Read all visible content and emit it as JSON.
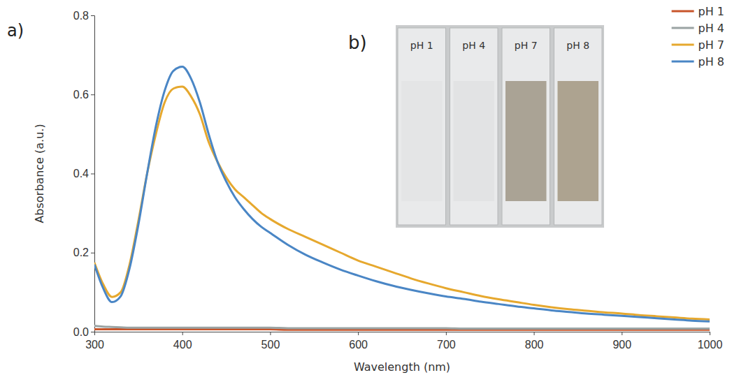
{
  "chart_data": {
    "type": "line",
    "annotations": [
      "a)"
    ],
    "inset": {
      "label": "b)",
      "labels": [
        "pH 1",
        "pH 4",
        "pH 7",
        "pH 8"
      ]
    },
    "x_label": "Wavelength (nm)",
    "y_label": "Absorbance (a.u.)",
    "x": [
      300,
      310,
      320,
      330,
      340,
      350,
      360,
      370,
      380,
      390,
      400,
      410,
      420,
      430,
      440,
      450,
      460,
      470,
      480,
      490,
      500,
      520,
      540,
      560,
      580,
      600,
      620,
      640,
      660,
      680,
      700,
      720,
      740,
      760,
      780,
      800,
      820,
      840,
      860,
      880,
      900,
      920,
      940,
      960,
      980,
      1000
    ],
    "series": [
      {
        "name": "pH 1",
        "color": "#c8552b",
        "values": [
          0.006,
          0.006,
          0.006,
          0.006,
          0.006,
          0.006,
          0.006,
          0.006,
          0.006,
          0.006,
          0.006,
          0.006,
          0.006,
          0.006,
          0.006,
          0.006,
          0.006,
          0.006,
          0.006,
          0.006,
          0.006,
          0.005,
          0.005,
          0.005,
          0.005,
          0.005,
          0.005,
          0.005,
          0.005,
          0.005,
          0.005,
          0.005,
          0.005,
          0.005,
          0.005,
          0.005,
          0.005,
          0.005,
          0.005,
          0.005,
          0.005,
          0.005,
          0.005,
          0.005,
          0.005,
          0.005
        ]
      },
      {
        "name": "pH 4",
        "color": "#9aa3a3",
        "values": [
          0.015,
          0.013,
          0.012,
          0.011,
          0.01,
          0.01,
          0.01,
          0.01,
          0.01,
          0.01,
          0.01,
          0.01,
          0.01,
          0.01,
          0.01,
          0.01,
          0.01,
          0.01,
          0.01,
          0.01,
          0.01,
          0.009,
          0.009,
          0.009,
          0.009,
          0.009,
          0.009,
          0.009,
          0.009,
          0.009,
          0.009,
          0.008,
          0.008,
          0.008,
          0.008,
          0.008,
          0.008,
          0.008,
          0.008,
          0.008,
          0.008,
          0.008,
          0.008,
          0.008,
          0.008,
          0.008
        ]
      },
      {
        "name": "pH 7",
        "color": "#e6a82e",
        "values": [
          0.175,
          0.12,
          0.088,
          0.1,
          0.17,
          0.28,
          0.4,
          0.5,
          0.58,
          0.615,
          0.62,
          0.595,
          0.55,
          0.48,
          0.43,
          0.39,
          0.36,
          0.34,
          0.32,
          0.3,
          0.285,
          0.26,
          0.24,
          0.22,
          0.2,
          0.18,
          0.165,
          0.15,
          0.135,
          0.122,
          0.11,
          0.1,
          0.09,
          0.082,
          0.075,
          0.068,
          0.062,
          0.057,
          0.053,
          0.049,
          0.046,
          0.042,
          0.039,
          0.036,
          0.033,
          0.031
        ]
      },
      {
        "name": "pH 8",
        "color": "#4a86c5",
        "values": [
          0.17,
          0.11,
          0.075,
          0.09,
          0.16,
          0.27,
          0.4,
          0.52,
          0.61,
          0.66,
          0.67,
          0.64,
          0.58,
          0.5,
          0.43,
          0.38,
          0.34,
          0.31,
          0.285,
          0.265,
          0.25,
          0.22,
          0.195,
          0.175,
          0.157,
          0.142,
          0.128,
          0.116,
          0.106,
          0.097,
          0.089,
          0.083,
          0.076,
          0.07,
          0.064,
          0.059,
          0.054,
          0.05,
          0.046,
          0.043,
          0.04,
          0.037,
          0.034,
          0.031,
          0.028,
          0.026
        ]
      }
    ],
    "xlim": [
      300,
      1000
    ],
    "xticks": [
      300,
      400,
      500,
      600,
      700,
      800,
      900,
      1000
    ],
    "ylim": [
      0,
      0.8
    ],
    "yticks": [
      {
        "value": 0,
        "label": "0.0"
      },
      0.2,
      0.4,
      0.6,
      0.8
    ],
    "grid": false,
    "legend": "upper right"
  }
}
